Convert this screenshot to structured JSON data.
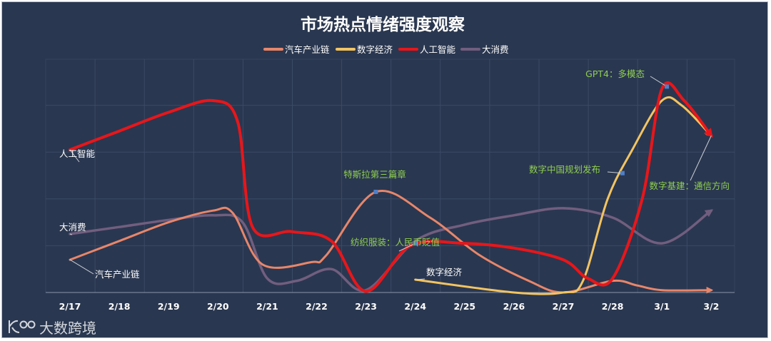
{
  "watermark": "大数跨境",
  "colors": {
    "background": "#2a3750",
    "grid": "#3b4a66",
    "annotation_green": "#8fcf4f",
    "marker": "#4f7fc8"
  },
  "chart_data": {
    "type": "line",
    "title": "市场热点情绪强度观察",
    "xlabel": "",
    "ylabel": "",
    "grid": true,
    "legend_position": "top-center",
    "categories": [
      "2/17",
      "2/18",
      "2/19",
      "2/20",
      "2/21",
      "2/22",
      "2/23",
      "2/24",
      "2/25",
      "2/26",
      "2/27",
      "2/28",
      "3/1",
      "3/2"
    ],
    "ylim": [
      0,
      100
    ],
    "series": [
      {
        "name": "汽车产业链",
        "color": "#e8866a",
        "width": 3,
        "points": [
          [
            0,
            14
          ],
          [
            1,
            22
          ],
          [
            2,
            30
          ],
          [
            2.9,
            35
          ],
          [
            3.3,
            34
          ],
          [
            3.9,
            12
          ],
          [
            4.9,
            13
          ],
          [
            5.2,
            16
          ],
          [
            6.2,
            43
          ],
          [
            7.3,
            32
          ],
          [
            8.3,
            16
          ],
          [
            9.3,
            5
          ],
          [
            10,
            0
          ],
          [
            11,
            5
          ],
          [
            11.5,
            3
          ],
          [
            12,
            1
          ],
          [
            13,
            1
          ]
        ],
        "start_label": "汽车产业链"
      },
      {
        "name": "数字经济",
        "color": "#f2c462",
        "width": 3,
        "points": [
          [
            7,
            5.5
          ],
          [
            9,
            0
          ],
          [
            10,
            0
          ],
          [
            10.4,
            5
          ],
          [
            10.9,
            40
          ],
          [
            11.4,
            61
          ],
          [
            12,
            82
          ],
          [
            12.4,
            80
          ],
          [
            13,
            67
          ]
        ],
        "start_label": "数字经济"
      },
      {
        "name": "人工智能",
        "color": "#e8161a",
        "width": 4,
        "points": [
          [
            0,
            61
          ],
          [
            1,
            69
          ],
          [
            2,
            77
          ],
          [
            2.9,
            82
          ],
          [
            3.4,
            73
          ],
          [
            3.7,
            28
          ],
          [
            4.5,
            26
          ],
          [
            5.3,
            22
          ],
          [
            6,
            0.5
          ],
          [
            6.9,
            20
          ],
          [
            8,
            21
          ],
          [
            9,
            19
          ],
          [
            10,
            14
          ],
          [
            10.5,
            6
          ],
          [
            11,
            6
          ],
          [
            11.6,
            40
          ],
          [
            12,
            87
          ],
          [
            12.45,
            82
          ],
          [
            13,
            67
          ]
        ],
        "start_label": "人工智能"
      },
      {
        "name": "大消费",
        "color": "#715e7e",
        "width": 3.5,
        "points": [
          [
            0,
            25
          ],
          [
            1,
            28
          ],
          [
            2,
            31
          ],
          [
            2.9,
            33
          ],
          [
            3.5,
            30
          ],
          [
            4,
            6
          ],
          [
            4.6,
            5
          ],
          [
            5.3,
            10
          ],
          [
            6,
            1
          ],
          [
            7,
            22
          ],
          [
            8,
            29
          ],
          [
            9,
            33
          ],
          [
            10,
            36
          ],
          [
            11,
            32
          ],
          [
            12,
            21
          ],
          [
            13,
            35
          ]
        ],
        "start_label": "大消费"
      }
    ],
    "annotations": [
      {
        "series": 0,
        "x": 6.2,
        "y": 43,
        "text": "特斯拉第三篇章"
      },
      {
        "series": 2,
        "x": 7,
        "y": 21,
        "text": "纺织服装：人民币贬值"
      },
      {
        "series": 1,
        "x": 11.2,
        "y": 51,
        "text": "数字中国规划发布"
      },
      {
        "series": 2,
        "x": 12.1,
        "y": 88,
        "text": "GPT4：多模态"
      },
      {
        "series": 1,
        "x": 13,
        "y": 67,
        "text": "数字基建：通信方向"
      }
    ]
  }
}
